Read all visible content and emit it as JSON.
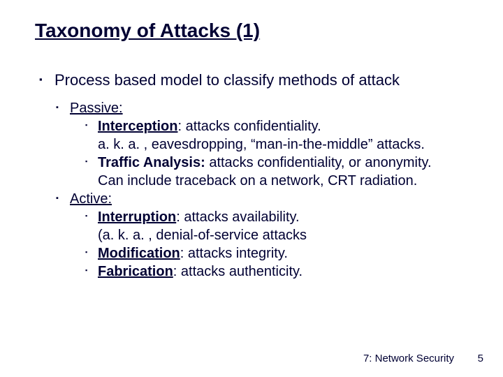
{
  "title": "Taxonomy of Attacks (1)",
  "main_point": "Process based model to classify methods of attack",
  "passive": {
    "label": "Passive:",
    "items": [
      {
        "term": "Interception",
        "rest": ": attacks confidentiality.",
        "cont": "a. k. a. , eavesdropping, “man-in-the-middle” attacks."
      },
      {
        "term": "Traffic Analysis:",
        "rest": " attacks confidentiality, or anonymity.",
        "cont": "Can include traceback on a network, CRT radiation."
      }
    ]
  },
  "active": {
    "label": "Active:",
    "items": [
      {
        "term": "Interruption",
        "rest": ": attacks availability.",
        "cont": "(a. k. a. , denial-of-service attacks"
      },
      {
        "term": "Modification",
        "rest": ": attacks integrity."
      },
      {
        "term": "Fabrication",
        "rest": ": attacks authenticity."
      }
    ]
  },
  "footer": "7: Network Security",
  "page": "5",
  "colors": {
    "text": "#000033",
    "bg": "#ffffff"
  }
}
